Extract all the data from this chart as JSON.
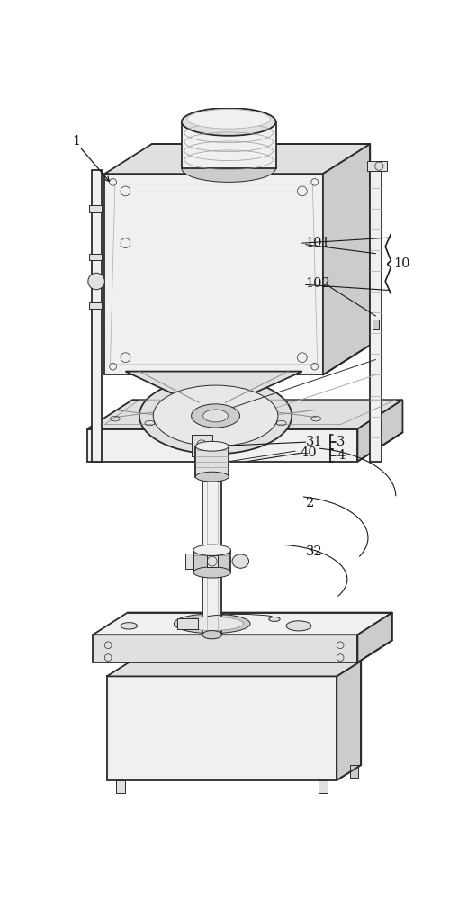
{
  "bg_color": "#ffffff",
  "line_color": "#2a2a2a",
  "label_color": "#1a1a1a",
  "figsize": [
    5.2,
    10.0
  ],
  "dpi": 100,
  "lw_main": 1.3,
  "lw_thin": 0.7,
  "lw_detail": 0.5,
  "gray_light": "#f0f0f0",
  "gray_mid": "#e0e0e0",
  "gray_dark": "#cccccc",
  "gray_shadow": "#b8b8b8"
}
